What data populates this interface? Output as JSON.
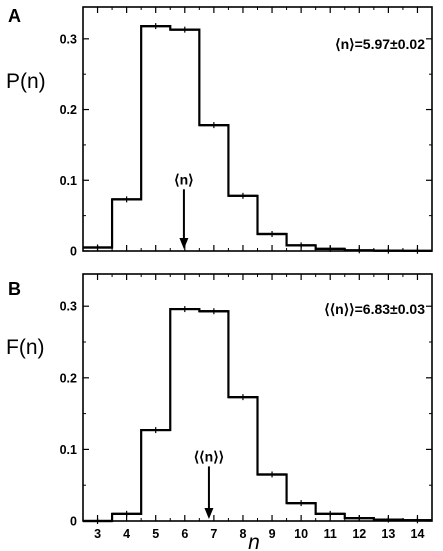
{
  "chart_data": [
    {
      "type": "bar",
      "panel_label": "A",
      "ylabel": "P(n)",
      "xlabel": "",
      "annotation": "⟨n⟩=5.97±0.02",
      "arrow_label": "⟨n⟩",
      "arrow_x": 5.97,
      "x": [
        3,
        4,
        5,
        6,
        7,
        8,
        9,
        10,
        11,
        12,
        13,
        14
      ],
      "values": [
        0.005,
        0.073,
        0.318,
        0.313,
        0.178,
        0.078,
        0.024,
        0.008,
        0.003,
        0.001,
        0.0005,
        0.0003
      ],
      "xlim": [
        2.5,
        14.5
      ],
      "ylim": [
        0,
        0.345
      ],
      "yticks": [
        0,
        0.1,
        0.2,
        0.3
      ],
      "ytick_labels": [
        "0",
        "0.1",
        "0.2",
        "0.3"
      ],
      "style": "step-histogram",
      "color": "#000000"
    },
    {
      "type": "bar",
      "panel_label": "B",
      "ylabel": "F(n)",
      "xlabel": "n",
      "annotation": "⟨⟨n⟩⟩=6.83±0.03",
      "arrow_label": "⟨⟨n⟩⟩",
      "arrow_x": 6.83,
      "x": [
        3,
        4,
        5,
        6,
        7,
        8,
        9,
        10,
        11,
        12,
        13,
        14
      ],
      "values": [
        0.0,
        0.01,
        0.127,
        0.296,
        0.293,
        0.173,
        0.065,
        0.025,
        0.01,
        0.004,
        0.002,
        0.001
      ],
      "xlim": [
        2.5,
        14.5
      ],
      "ylim": [
        0,
        0.345
      ],
      "yticks": [
        0,
        0.1,
        0.2,
        0.3
      ],
      "ytick_labels": [
        "0",
        "0.1",
        "0.2",
        "0.3"
      ],
      "xtick_labels": [
        "3",
        "4",
        "5",
        "6",
        "7",
        "8",
        "9",
        "10",
        "11",
        "12",
        "13",
        "14"
      ],
      "style": "step-histogram",
      "color": "#000000"
    }
  ]
}
